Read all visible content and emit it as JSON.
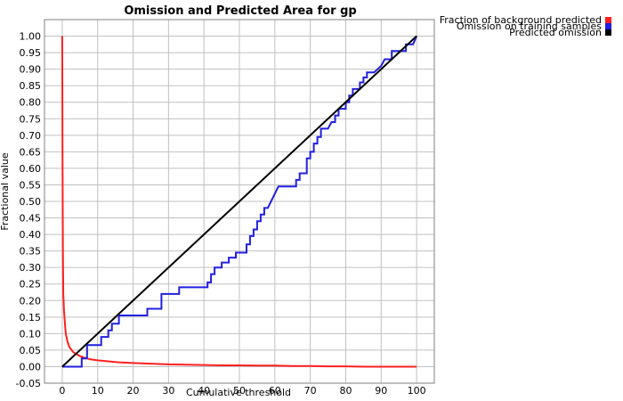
{
  "chart_data": {
    "type": "line",
    "title": "Omission and Predicted Area for gp",
    "xlabel": "Cumulative threshold",
    "ylabel": "Fractional value",
    "xlim": [
      -5,
      105
    ],
    "ylim": [
      -0.05,
      1.05
    ],
    "x_ticks": [
      "0",
      "10",
      "20",
      "30",
      "40",
      "50",
      "60",
      "70",
      "80",
      "90",
      "100"
    ],
    "y_ticks": [
      "-0.05",
      "0.00",
      "0.05",
      "0.10",
      "0.15",
      "0.20",
      "0.25",
      "0.30",
      "0.35",
      "0.40",
      "0.45",
      "0.50",
      "0.55",
      "0.60",
      "0.65",
      "0.70",
      "0.75",
      "0.80",
      "0.85",
      "0.90",
      "0.95",
      "1.00"
    ],
    "grid": true,
    "legend": "top-right",
    "series": [
      {
        "name": "Fraction of background predicted",
        "color": "#ff2020",
        "points": [
          [
            0,
            1.0
          ],
          [
            0.1,
            0.6
          ],
          [
            0.2,
            0.35
          ],
          [
            0.3,
            0.22
          ],
          [
            0.5,
            0.17
          ],
          [
            0.7,
            0.14
          ],
          [
            1,
            0.1
          ],
          [
            1.5,
            0.075
          ],
          [
            2,
            0.06
          ],
          [
            3,
            0.045
          ],
          [
            4,
            0.038
          ],
          [
            5,
            0.032
          ],
          [
            6,
            0.028
          ],
          [
            8,
            0.022
          ],
          [
            10,
            0.019
          ],
          [
            13,
            0.016
          ],
          [
            16,
            0.013
          ],
          [
            20,
            0.011
          ],
          [
            25,
            0.009
          ],
          [
            30,
            0.007
          ],
          [
            35,
            0.006
          ],
          [
            40,
            0.005
          ],
          [
            45,
            0.004
          ],
          [
            50,
            0.004
          ],
          [
            55,
            0.003
          ],
          [
            60,
            0.003
          ],
          [
            65,
            0.002
          ],
          [
            70,
            0.002
          ],
          [
            75,
            0.001
          ],
          [
            80,
            0.001
          ],
          [
            85,
            0.0
          ],
          [
            90,
            0.0
          ],
          [
            95,
            0.0
          ],
          [
            100,
            0.0
          ]
        ]
      },
      {
        "name": "Omission on training samples",
        "color": "#2020e0",
        "points": [
          [
            0,
            0.0
          ],
          [
            5.5,
            0.0
          ],
          [
            5.5,
            0.025
          ],
          [
            7,
            0.025
          ],
          [
            7,
            0.065
          ],
          [
            11,
            0.065
          ],
          [
            11,
            0.09
          ],
          [
            13,
            0.09
          ],
          [
            13,
            0.11
          ],
          [
            14,
            0.11
          ],
          [
            14,
            0.13
          ],
          [
            16,
            0.13
          ],
          [
            16,
            0.155
          ],
          [
            24,
            0.155
          ],
          [
            24,
            0.175
          ],
          [
            28,
            0.175
          ],
          [
            28,
            0.22
          ],
          [
            33,
            0.22
          ],
          [
            33,
            0.24
          ],
          [
            41,
            0.24
          ],
          [
            41,
            0.255
          ],
          [
            42,
            0.255
          ],
          [
            42,
            0.28
          ],
          [
            43,
            0.28
          ],
          [
            43,
            0.3
          ],
          [
            45,
            0.3
          ],
          [
            45,
            0.315
          ],
          [
            47,
            0.315
          ],
          [
            47,
            0.33
          ],
          [
            49,
            0.33
          ],
          [
            49,
            0.345
          ],
          [
            52,
            0.345
          ],
          [
            52,
            0.37
          ],
          [
            53,
            0.37
          ],
          [
            53,
            0.395
          ],
          [
            54,
            0.395
          ],
          [
            54,
            0.415
          ],
          [
            55,
            0.415
          ],
          [
            55,
            0.44
          ],
          [
            56,
            0.44
          ],
          [
            56,
            0.46
          ],
          [
            57,
            0.46
          ],
          [
            57,
            0.48
          ],
          [
            58,
            0.48
          ],
          [
            61,
            0.545
          ],
          [
            66,
            0.545
          ],
          [
            66,
            0.565
          ],
          [
            67,
            0.565
          ],
          [
            67,
            0.585
          ],
          [
            69,
            0.585
          ],
          [
            69,
            0.63
          ],
          [
            70,
            0.63
          ],
          [
            70,
            0.65
          ],
          [
            71,
            0.65
          ],
          [
            71,
            0.675
          ],
          [
            72,
            0.675
          ],
          [
            72,
            0.695
          ],
          [
            73,
            0.695
          ],
          [
            73,
            0.72
          ],
          [
            75,
            0.72
          ],
          [
            76,
            0.74
          ],
          [
            77,
            0.74
          ],
          [
            77,
            0.76
          ],
          [
            78,
            0.76
          ],
          [
            78,
            0.78
          ],
          [
            80,
            0.78
          ],
          [
            80,
            0.8
          ],
          [
            81,
            0.8
          ],
          [
            81,
            0.82
          ],
          [
            82,
            0.82
          ],
          [
            82,
            0.84
          ],
          [
            84,
            0.84
          ],
          [
            84,
            0.86
          ],
          [
            85,
            0.86
          ],
          [
            85,
            0.875
          ],
          [
            86,
            0.875
          ],
          [
            86,
            0.89
          ],
          [
            88,
            0.89
          ],
          [
            90,
            0.91
          ],
          [
            91,
            0.93
          ],
          [
            93,
            0.93
          ],
          [
            93,
            0.955
          ],
          [
            97,
            0.955
          ],
          [
            97,
            0.975
          ],
          [
            99,
            0.975
          ],
          [
            100,
            1.0
          ]
        ]
      },
      {
        "name": "Predicted omission",
        "color": "#000000",
        "points": [
          [
            0,
            0.0
          ],
          [
            100,
            1.0
          ]
        ]
      }
    ]
  }
}
